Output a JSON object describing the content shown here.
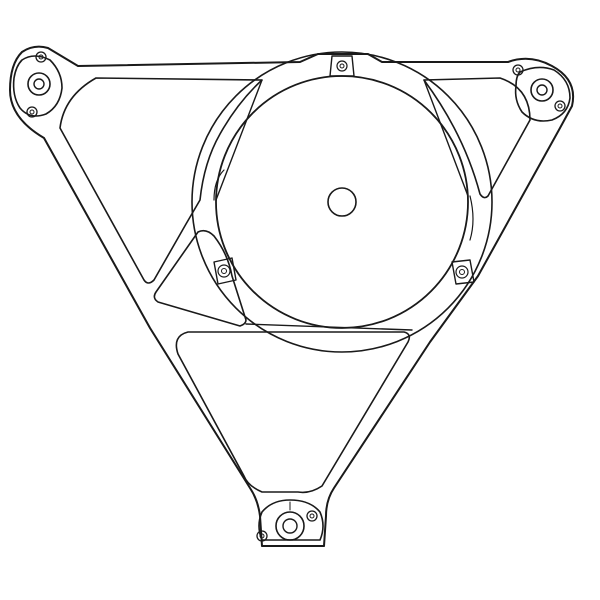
{
  "drawing": {
    "line_color": "#1a1a1a",
    "background_color": "#ffffff",
    "icons": {
      "frame": "triangular-frame",
      "disc": "circular-disc",
      "hub": "center-hole",
      "mounting_points": "bolt-bosses",
      "fasteners": "screw-heads"
    }
  }
}
